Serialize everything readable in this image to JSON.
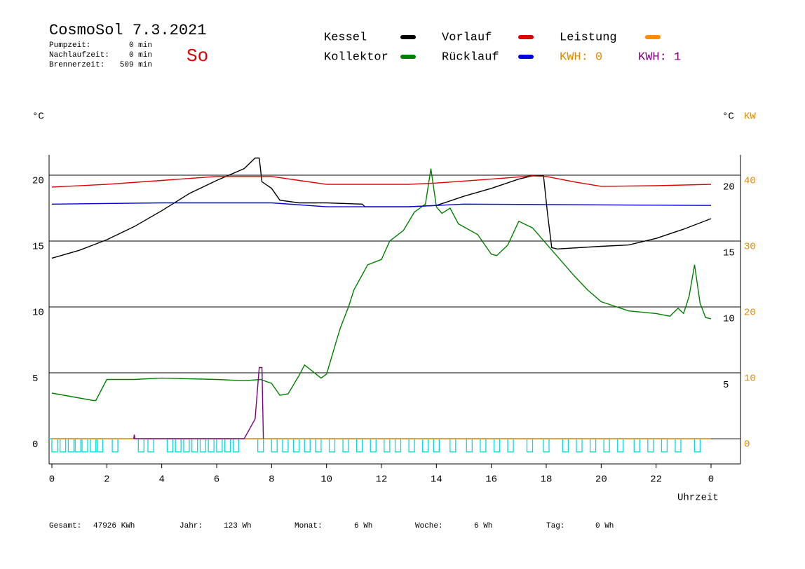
{
  "chart_data": {
    "type": "line",
    "title": "CosmoSol 7.3.2021",
    "day": "So",
    "stats": [
      {
        "label": "Pumpzeit:",
        "value": "0 min"
      },
      {
        "label": "Nachlaufzeit:",
        "value": "0 min"
      },
      {
        "label": "Brennerzeit:",
        "value": "509 min"
      }
    ],
    "y_label": "°C",
    "y2_label_c": "°C",
    "y2_label": "KW",
    "x_label": "Uhrzeit",
    "xlim": [
      0,
      25.5
    ],
    "xticks": [
      0,
      2,
      4,
      6,
      8,
      10,
      12,
      14,
      16,
      18,
      20,
      22,
      {
        "value": 24,
        "label": "0"
      }
    ],
    "ylim": [
      -1.91,
      21.54
    ],
    "yticks": [
      0,
      5,
      10,
      15,
      20
    ],
    "inner_yticks": [
      5,
      10,
      15,
      20
    ],
    "y2lim": [
      -3.83,
      43.08
    ],
    "y2ticks": [
      0,
      10,
      20,
      30,
      40
    ],
    "grid": true,
    "series": [
      {
        "name": "Kessel",
        "color": "#000000",
        "x": [
          0,
          1,
          2,
          3,
          4,
          5,
          6,
          7,
          7.4,
          7.55,
          7.65,
          8,
          8.3,
          9,
          10,
          11.3,
          11.4,
          13,
          14,
          15,
          16,
          17,
          17.5,
          17.9,
          18.05,
          18.2,
          18.4,
          20,
          21,
          22,
          23,
          24
        ],
        "values": [
          13.7,
          14.3,
          15.1,
          16.1,
          17.3,
          18.6,
          19.6,
          20.5,
          21.3,
          21.3,
          19.5,
          19.0,
          18.1,
          17.9,
          17.9,
          17.8,
          17.6,
          17.6,
          17.7,
          18.4,
          19.0,
          19.7,
          19.95,
          19.95,
          17,
          14.5,
          14.4,
          14.6,
          14.7,
          15.2,
          15.9,
          16.7
        ]
      },
      {
        "name": "Kollektor",
        "color": "#008000",
        "x": [
          0,
          1.5,
          1.6,
          2,
          3,
          4,
          6,
          7,
          7.6,
          8,
          8.3,
          8.6,
          9,
          9.2,
          9.5,
          9.8,
          10,
          10.3,
          10.5,
          10.8,
          11,
          11.5,
          12,
          12.3,
          12.8,
          13.2,
          13.6,
          13.8,
          14,
          14.2,
          14.5,
          14.8,
          15.5,
          16,
          16.2,
          16.6,
          17,
          17.5,
          18,
          18.5,
          19,
          19.5,
          20,
          21,
          22,
          22.5,
          22.8,
          23,
          23.2,
          23.4,
          23.6,
          23.8,
          24
        ],
        "values": [
          3.46,
          2.9,
          2.9,
          4.5,
          4.5,
          4.6,
          4.5,
          4.4,
          4.5,
          4.2,
          3.3,
          3.4,
          4.8,
          5.6,
          5.1,
          4.6,
          4.9,
          7.0,
          8.4,
          10.0,
          11.3,
          13.2,
          13.6,
          15.0,
          15.8,
          17.2,
          17.8,
          20.5,
          17.6,
          17.1,
          17.5,
          16.3,
          15.5,
          14.0,
          13.9,
          14.7,
          16.5,
          16.0,
          14.8,
          13.6,
          12.4,
          11.3,
          10.4,
          9.7,
          9.5,
          9.3,
          9.9,
          9.5,
          10.8,
          13.2,
          10.3,
          9.2,
          9.1
        ]
      },
      {
        "name": "Vorlauf",
        "color": "#e00000",
        "x": [
          0,
          2,
          4,
          6,
          8,
          9,
          10,
          13,
          14,
          16,
          17.5,
          18,
          19,
          20,
          22,
          24
        ],
        "values": [
          19.1,
          19.3,
          19.6,
          19.9,
          19.9,
          19.6,
          19.3,
          19.3,
          19.4,
          19.7,
          19.95,
          19.9,
          19.5,
          19.15,
          19.2,
          19.3
        ]
      },
      {
        "name": "Rücklauf",
        "color": "#0000e0",
        "x": [
          0,
          4,
          8,
          10,
          13,
          15,
          24
        ],
        "values": [
          17.8,
          17.9,
          17.9,
          17.6,
          17.6,
          17.8,
          17.7
        ]
      },
      {
        "name": "Leistung",
        "color": "#ff8c00",
        "axis": "y2",
        "x": [
          0,
          24
        ],
        "values": [
          0,
          0
        ]
      }
    ],
    "kwh": [
      {
        "name": "KWH: 0",
        "color": "#e08a00"
      },
      {
        "name": "KWH: 1",
        "color": "#800080",
        "x": [
          2.98,
          3.0,
          3.02,
          7.0,
          7.4,
          7.55,
          7.65,
          7.7
        ],
        "values": [
          0,
          0.3,
          0,
          0,
          1.5,
          5.4,
          5.4,
          0
        ]
      }
    ],
    "pump": {
      "color": "#00dede",
      "x": [
        0.1,
        0.4,
        0.7,
        0.95,
        1.2,
        1.5,
        1.75,
        2.3,
        3.25,
        3.6,
        4.3,
        4.6,
        4.9,
        5.2,
        5.5,
        5.8,
        6.1,
        6.4,
        6.7,
        7.6,
        8.1,
        8.5,
        8.9,
        9.3,
        9.7,
        10.2,
        10.7,
        11.2,
        11.7,
        12.2,
        12.6,
        13.1,
        13.6,
        14.0,
        14.6,
        15.2,
        15.7,
        16.2,
        16.7,
        17.4,
        18.0,
        18.7,
        19.2,
        19.7,
        20.2,
        20.7,
        21.3,
        21.8,
        22.3,
        22.8,
        23.5
      ],
      "values": [
        -1,
        -1,
        -1,
        -1,
        -1,
        -1,
        -1,
        -1,
        -1,
        -1,
        -1,
        -1,
        -1,
        -1,
        -1,
        -1,
        -1,
        -1,
        -1,
        -1,
        -1,
        -1,
        -1,
        -1,
        -1,
        -1,
        -1,
        -1,
        -1,
        -1,
        -1,
        -1,
        -1,
        -1,
        -1,
        -1,
        -1,
        -1,
        -1,
        -1,
        -1,
        -1,
        -1,
        -1,
        -1,
        -1,
        -1,
        -1,
        -1,
        -1,
        -1
      ]
    },
    "totals": [
      {
        "label": "Gesamt:",
        "value": "47926 KWh"
      },
      {
        "label": "Jahr:",
        "value": "123 Wh"
      },
      {
        "label": "Monat:",
        "value": "6 Wh"
      },
      {
        "label": "Woche:",
        "value": "6 Wh"
      },
      {
        "label": "Tag:",
        "value": "0 Wh"
      }
    ]
  }
}
